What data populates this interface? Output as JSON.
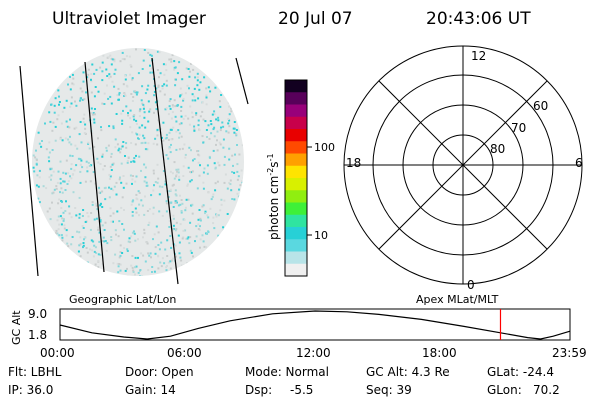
{
  "header": {
    "title": "Ultraviolet Imager",
    "date": "20 Jul 07",
    "time": "20:43:06 UT"
  },
  "colorbar": {
    "label": "photon cm",
    "label_sup1": "-2",
    "label_mid": "s",
    "label_sup2": "-1",
    "ticks": [
      {
        "value": 100,
        "label": "100"
      },
      {
        "value": 10,
        "label": "10"
      }
    ],
    "scale": "log",
    "colors": [
      "#f0f0f0",
      "#b8e4e8",
      "#5ad8e0",
      "#27d0d6",
      "#2fe4a0",
      "#3ef038",
      "#90ee10",
      "#d8f000",
      "#ffe400",
      "#ffa000",
      "#ff4a00",
      "#e80000",
      "#c8004a",
      "#98007a",
      "#58005a",
      "#120020"
    ]
  },
  "polar_plot": {
    "mlt_labels": [
      "12",
      "18",
      "6",
      "0"
    ],
    "mlat_labels": [
      "60",
      "70",
      "80"
    ]
  },
  "timeline": {
    "left_label": "Geographic Lat/Lon",
    "right_label": "Apex MLat/MLT",
    "y_axis_label": "GC Alt",
    "y_ticks": [
      "9.0",
      "1.8"
    ],
    "x_ticks": [
      "00:00",
      "06:00",
      "12:00",
      "18:00",
      "23:59"
    ],
    "marker_color": "#ff0000",
    "marker_time_hours": 20.72
  },
  "status": {
    "flt": "Flt: LBHL",
    "door": "Door: Open",
    "mode": "Mode: Normal",
    "gc_alt": "GC Alt: 4.3 Re",
    "glat": "GLat: -24.4",
    "ip": "IP: 36.0",
    "gain": "Gain: 14",
    "dsp": "Dsp:",
    "dsp_val": "-5.5",
    "seq": "Seq: 39",
    "glon": "GLon:",
    "glon_val": "70.2"
  }
}
